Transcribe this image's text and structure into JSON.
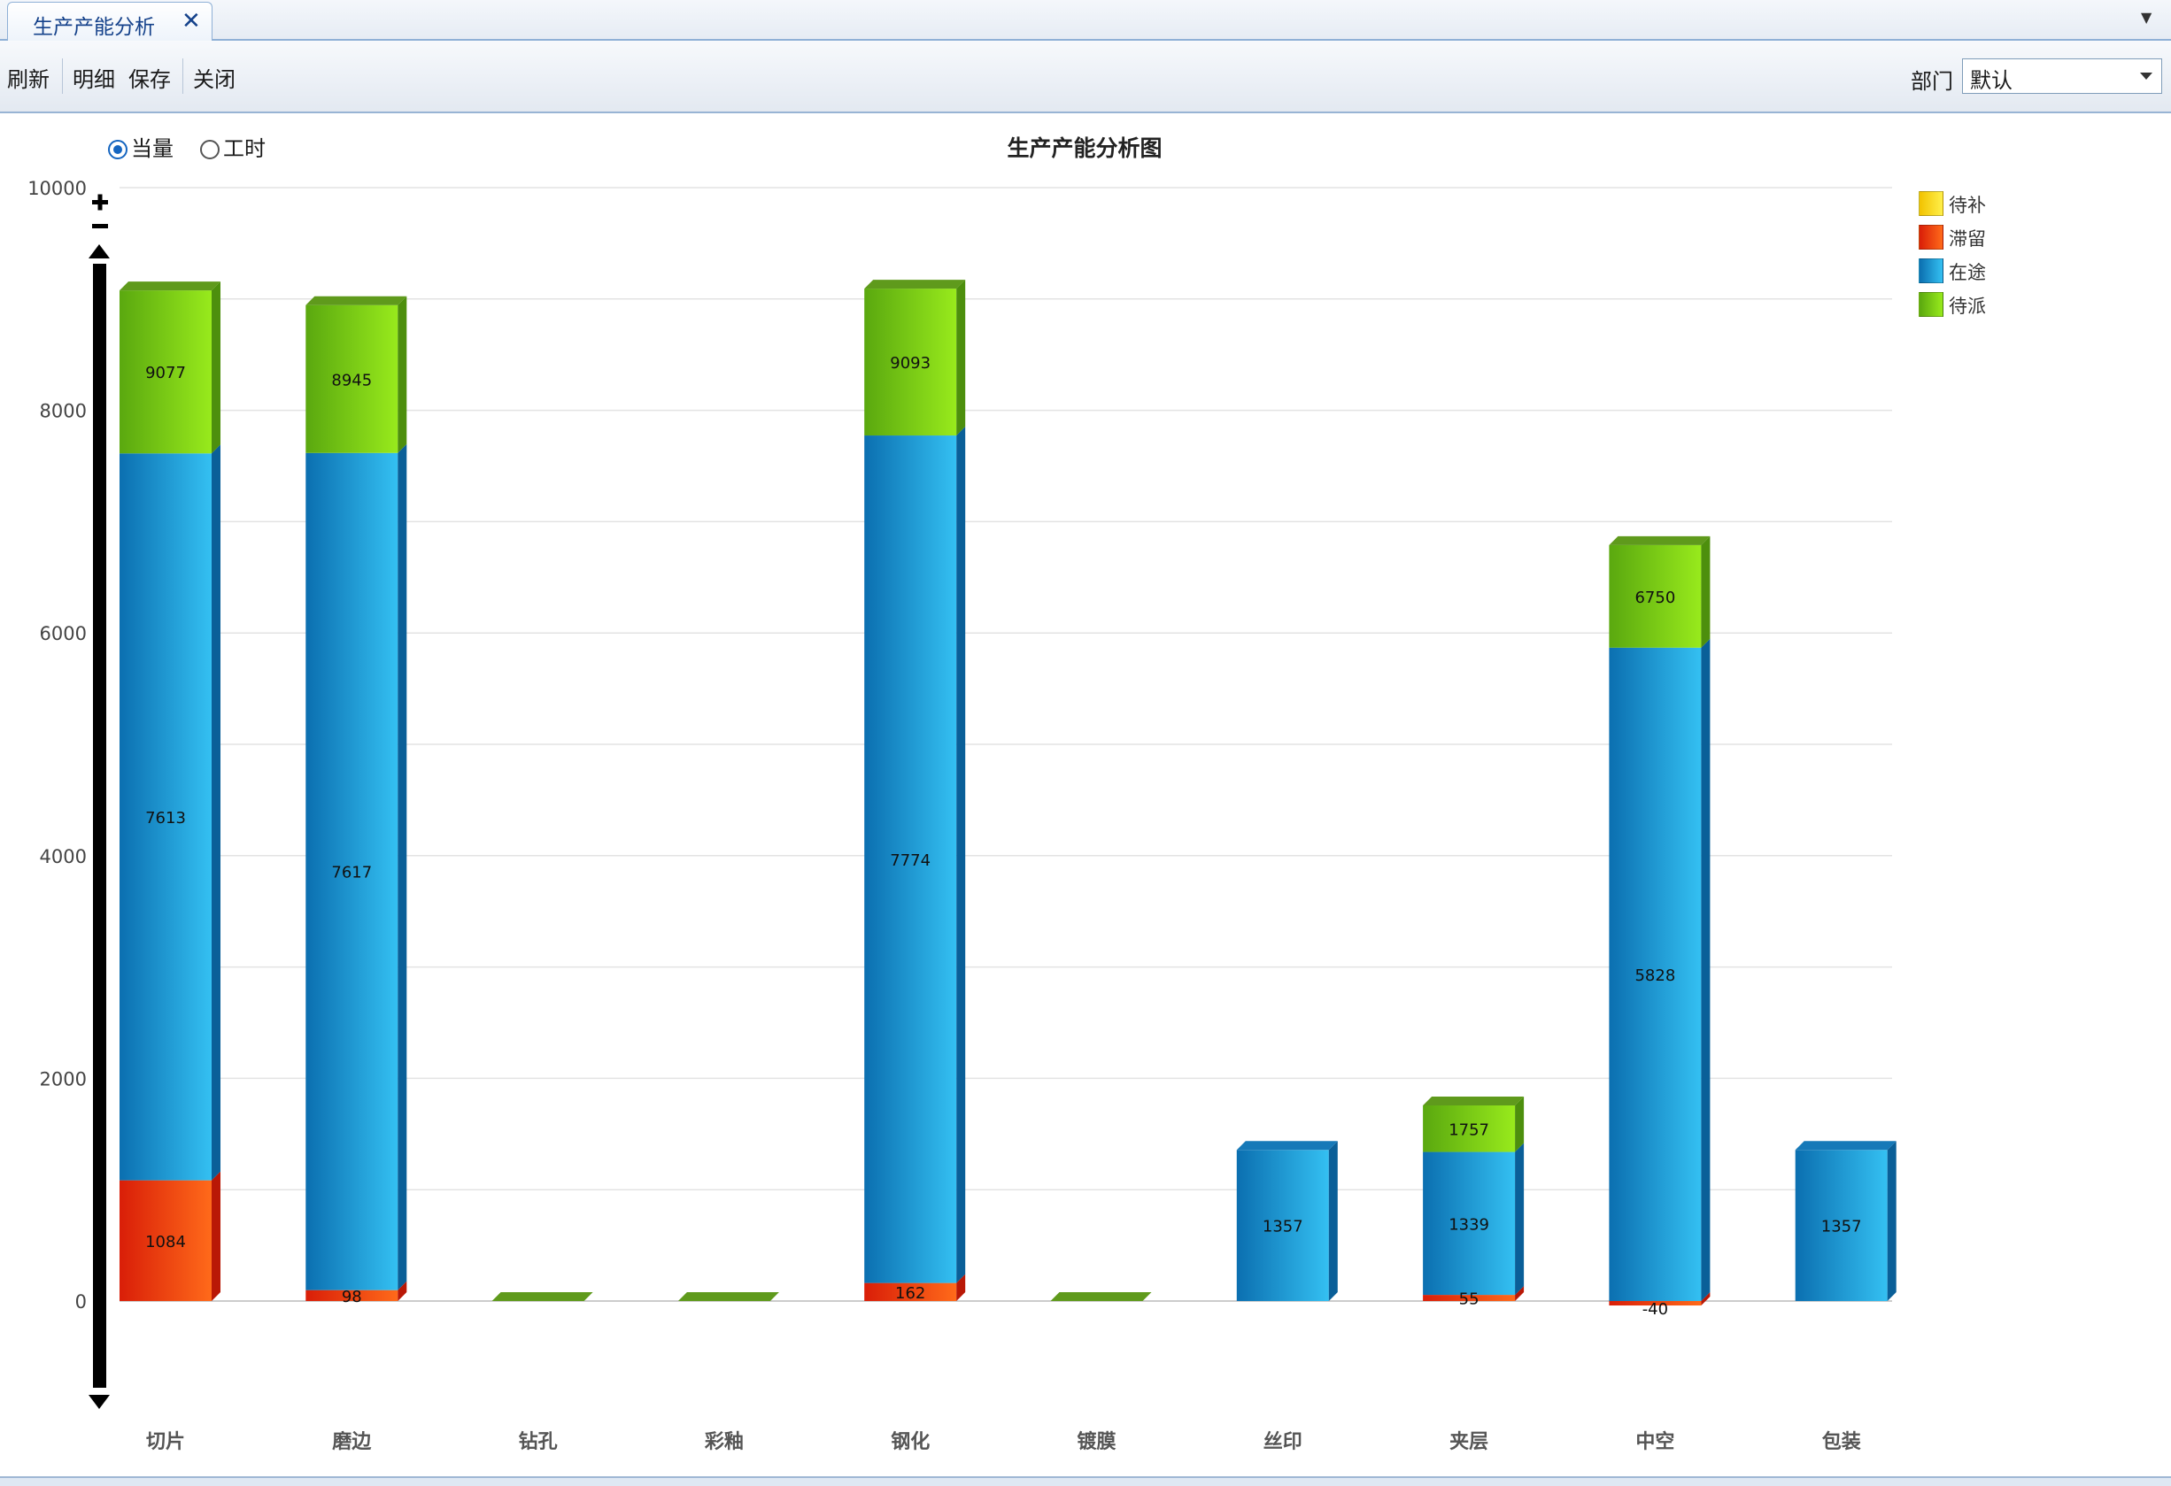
{
  "tab": {
    "title": "生产产能分析",
    "close_icon": "close-icon"
  },
  "toolbar": {
    "refresh_label": "刷新",
    "detail_label": "明细",
    "save_label": "保存",
    "close_label": "关闭",
    "department_label": "部门",
    "department_value": "默认"
  },
  "radio_options": [
    {
      "label": "当量",
      "checked": true
    },
    {
      "label": "工时",
      "checked": false
    }
  ],
  "colors": {
    "待补": "#f7e21a",
    "滞留": "#e8350e",
    "在途": "#1e8fd2",
    "待派": "#7ec81a"
  },
  "chart_data": {
    "type": "bar",
    "stacked": true,
    "title": "生产产能分析图",
    "categories": [
      "切片",
      "磨边",
      "钻孔",
      "彩釉",
      "钢化",
      "镀膜",
      "丝印",
      "夹层",
      "中空",
      "包装"
    ],
    "series": [
      {
        "name": "待补",
        "values": [
          0,
          0,
          0,
          0,
          0,
          0,
          0,
          0,
          0,
          0
        ]
      },
      {
        "name": "滞留",
        "values": [
          1084,
          98,
          0,
          0,
          162,
          0,
          0,
          55,
          -40,
          0
        ]
      },
      {
        "name": "在途",
        "values": [
          6529,
          7519,
          0,
          0,
          7612,
          0,
          1357,
          1284,
          5868,
          1357
        ]
      },
      {
        "name": "待派",
        "values": [
          1464,
          1328,
          0,
          0,
          1319,
          0,
          0,
          418,
          922,
          0
        ]
      }
    ],
    "data_labels": [
      {
        "滞留": "1084",
        "在途": "7613",
        "待派": "9077"
      },
      {
        "滞留": "98",
        "在途": "7617",
        "待派": "8945"
      },
      {},
      {},
      {
        "滞留": "162",
        "在途": "7774",
        "待派": "9093"
      },
      {},
      {
        "在途": "1357"
      },
      {
        "滞留": "55",
        "在途": "1339",
        "待派": "1757"
      },
      {
        "滞留": "-40",
        "在途": "5828",
        "待派": "6750"
      },
      {
        "在途": "1357"
      }
    ],
    "yticks": [
      "0",
      "2000",
      "4000",
      "6000",
      "8000",
      "10000"
    ],
    "ylim": [
      0,
      10000
    ],
    "grid": true,
    "legend_position": "top-right"
  }
}
